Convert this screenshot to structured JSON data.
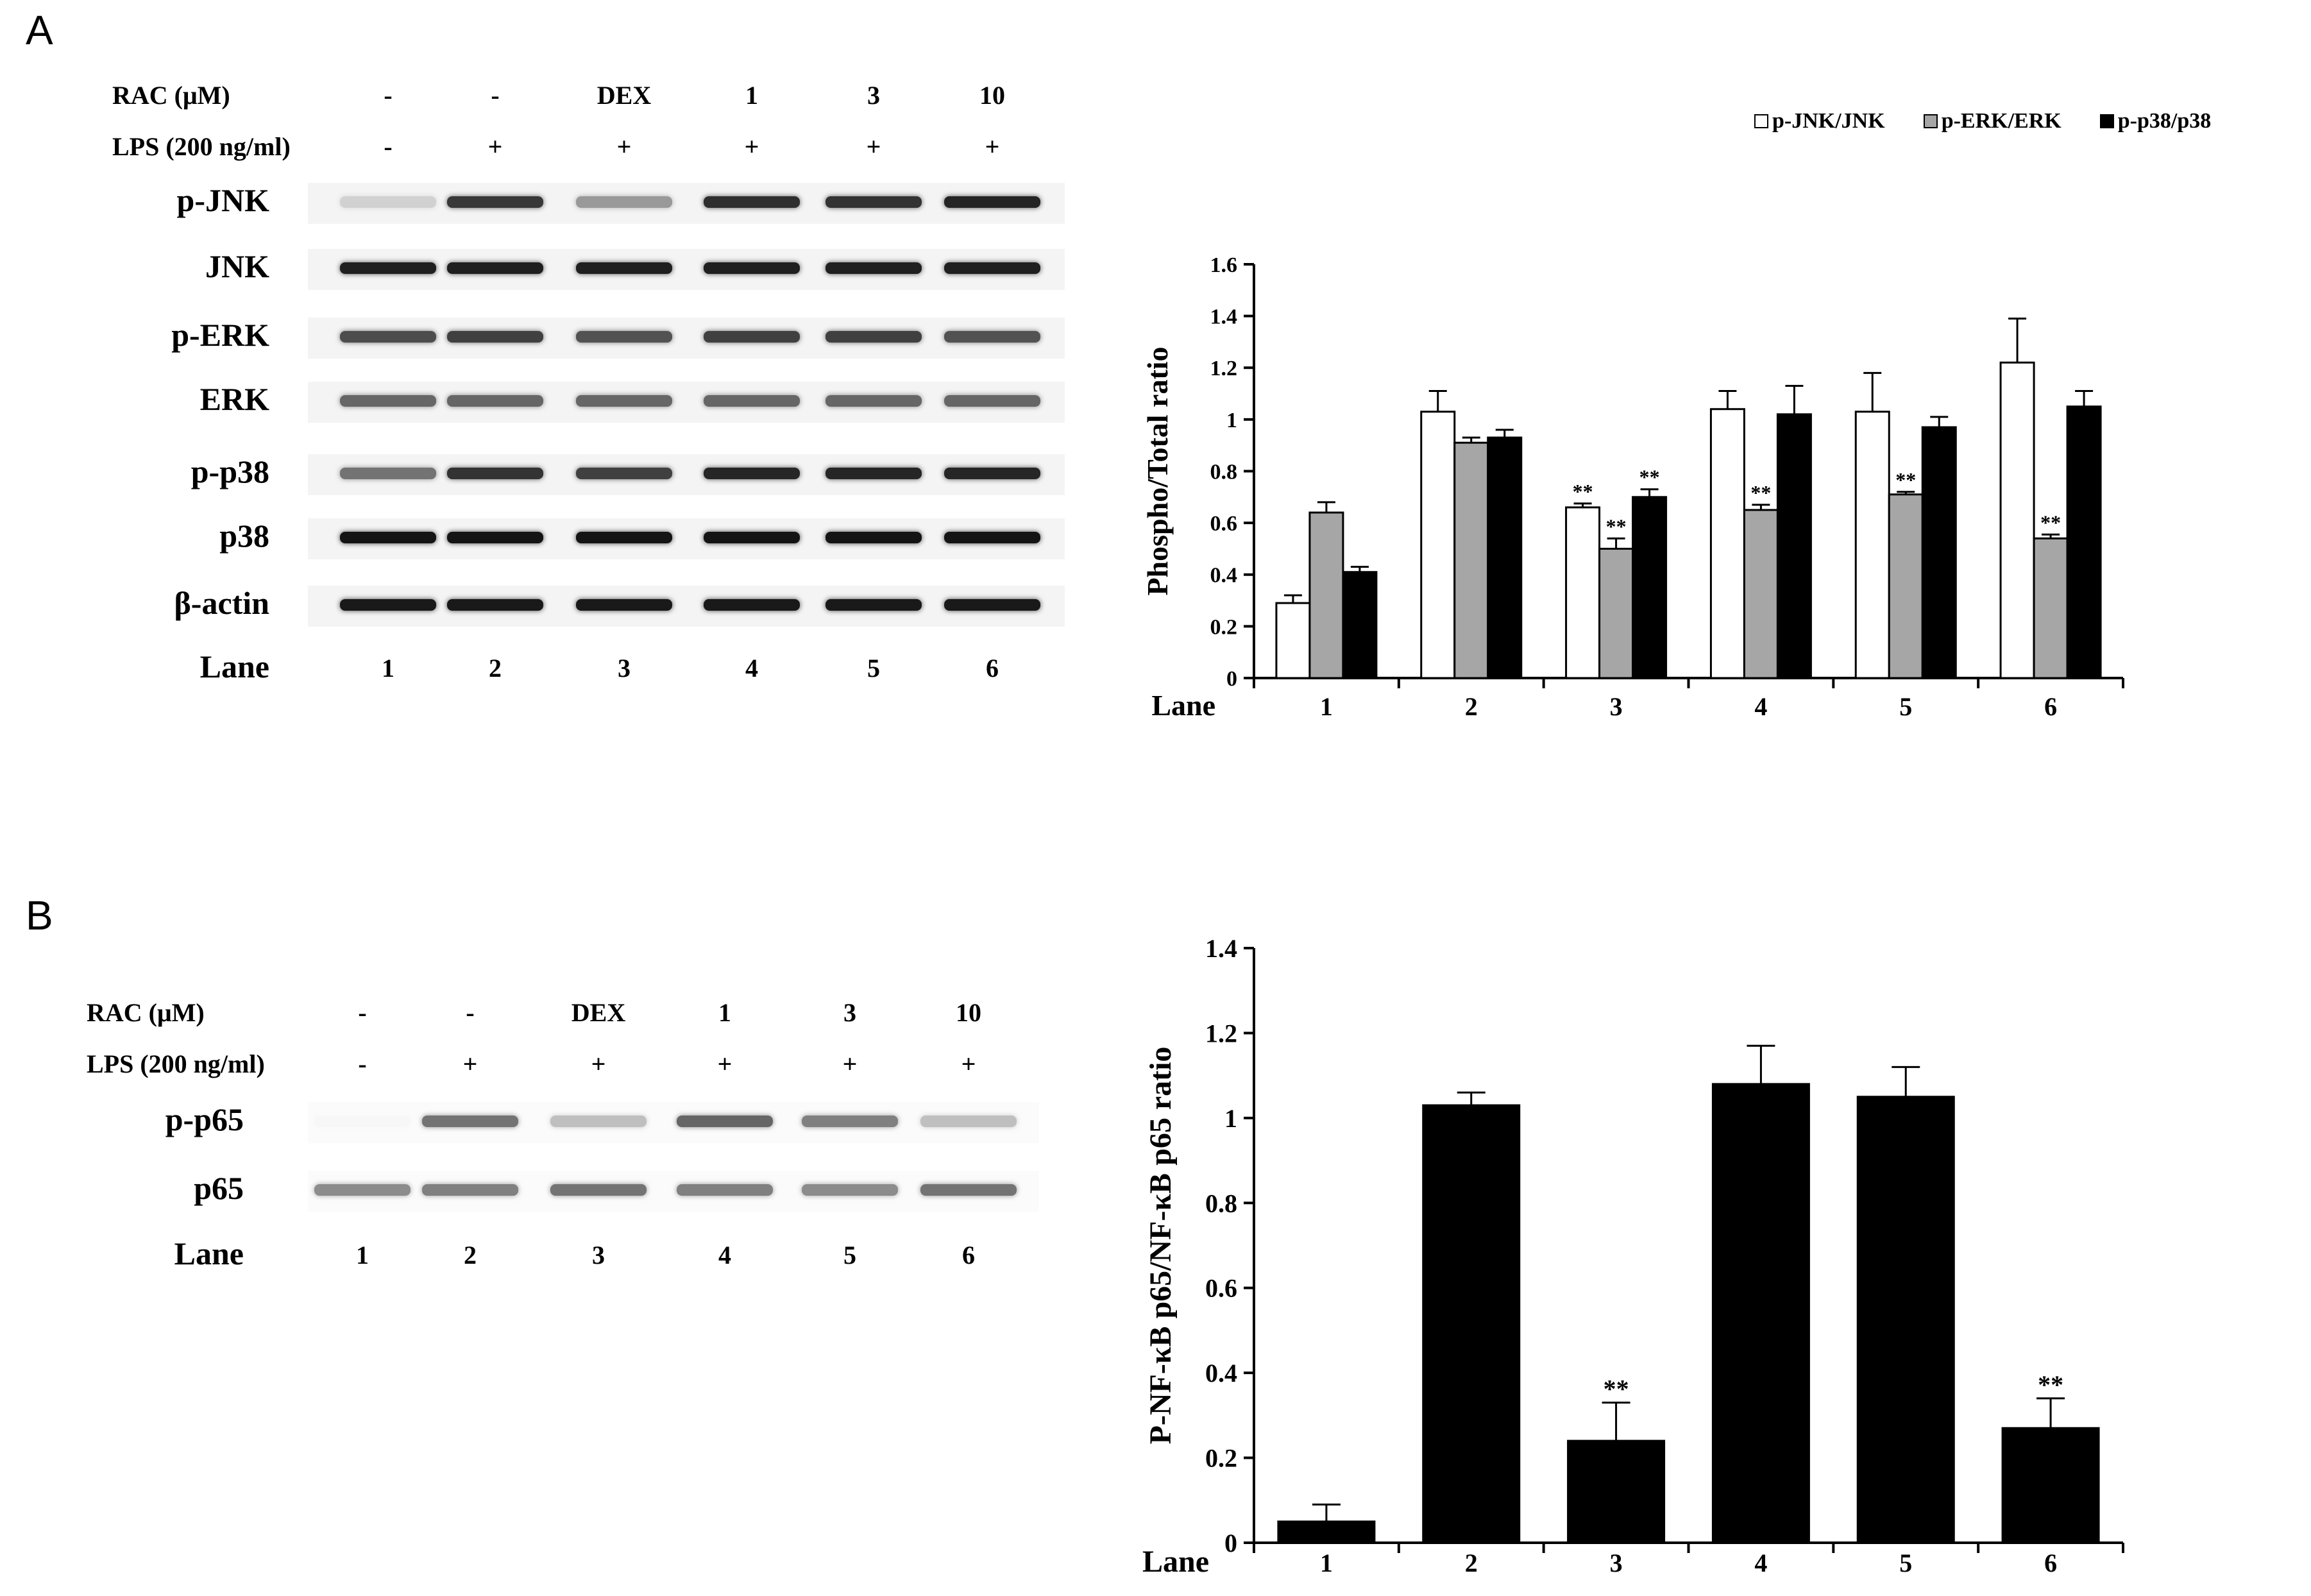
{
  "panel_a": {
    "letter": "A",
    "blot": {
      "conditions": [
        {
          "label": "RAC (μM)",
          "values": [
            "-",
            "-",
            "DEX",
            "1",
            "3",
            "10"
          ]
        },
        {
          "label": "LPS (200 ng/ml)",
          "values": [
            "-",
            "+",
            "+",
            "+",
            "+",
            "+"
          ]
        }
      ],
      "rows": [
        {
          "label": "p-JNK",
          "intensity": [
            0.18,
            0.78,
            0.4,
            0.82,
            0.8,
            0.86
          ]
        },
        {
          "label": "JNK",
          "intensity": [
            0.88,
            0.88,
            0.88,
            0.88,
            0.88,
            0.88
          ]
        },
        {
          "label": "p-ERK",
          "intensity": [
            0.7,
            0.75,
            0.68,
            0.75,
            0.75,
            0.68
          ]
        },
        {
          "label": "ERK",
          "intensity": [
            0.6,
            0.6,
            0.6,
            0.6,
            0.6,
            0.6
          ]
        },
        {
          "label": "p-p38",
          "intensity": [
            0.55,
            0.8,
            0.75,
            0.85,
            0.85,
            0.85
          ]
        },
        {
          "label": "p38",
          "intensity": [
            0.92,
            0.92,
            0.92,
            0.92,
            0.92,
            0.92
          ]
        },
        {
          "label": "β-actin",
          "intensity": [
            0.9,
            0.9,
            0.9,
            0.9,
            0.9,
            0.9
          ]
        }
      ],
      "lane_label": "Lane",
      "lanes": [
        "1",
        "2",
        "3",
        "4",
        "5",
        "6"
      ]
    }
  },
  "panel_b": {
    "letter": "B",
    "blot": {
      "conditions": [
        {
          "label": "RAC (μM)",
          "values": [
            "-",
            "-",
            "DEX",
            "1",
            "3",
            "10"
          ]
        },
        {
          "label": "LPS (200 ng/ml)",
          "values": [
            "-",
            "+",
            "+",
            "+",
            "+",
            "+"
          ]
        }
      ],
      "rows": [
        {
          "label": "p-p65",
          "intensity": [
            0.03,
            0.55,
            0.25,
            0.6,
            0.5,
            0.25
          ]
        },
        {
          "label": "p65",
          "intensity": [
            0.45,
            0.5,
            0.55,
            0.5,
            0.45,
            0.55
          ]
        }
      ],
      "lane_label": "Lane",
      "lanes": [
        "1",
        "2",
        "3",
        "4",
        "5",
        "6"
      ]
    }
  },
  "chart_data": [
    {
      "type": "bar",
      "title": "",
      "xlabel": "Lane",
      "ylabel": "Phospho/Total ratio",
      "categories": [
        "1",
        "2",
        "3",
        "4",
        "5",
        "6"
      ],
      "ylim": [
        0,
        1.6
      ],
      "yticks": [
        "0",
        "0.2",
        "0.4",
        "0.6",
        "0.8",
        "1",
        "1.2",
        "1.4",
        "1.6"
      ],
      "legend_position": "top",
      "series": [
        {
          "name": "p-JNK/JNK",
          "color": "#ffffff",
          "values": [
            0.29,
            1.03,
            0.66,
            1.04,
            1.03,
            1.22
          ],
          "errors": [
            0.03,
            0.08,
            0.015,
            0.07,
            0.15,
            0.17
          ],
          "significance": [
            "",
            "",
            "**",
            "",
            "",
            ""
          ]
        },
        {
          "name": "p-ERK/ERK",
          "color": "#a6a6a6",
          "values": [
            0.64,
            0.91,
            0.5,
            0.65,
            0.71,
            0.54
          ],
          "errors": [
            0.04,
            0.02,
            0.04,
            0.02,
            0.01,
            0.015
          ],
          "significance": [
            "",
            "",
            "**",
            "**",
            "**",
            "**"
          ]
        },
        {
          "name": "p-p38/p38",
          "color": "#000000",
          "values": [
            0.41,
            0.93,
            0.7,
            1.02,
            0.97,
            1.05
          ],
          "errors": [
            0.02,
            0.03,
            0.03,
            0.11,
            0.04,
            0.06
          ],
          "significance": [
            "",
            "",
            "**",
            "",
            "",
            ""
          ]
        }
      ]
    },
    {
      "type": "bar",
      "title": "",
      "xlabel": "Lane",
      "ylabel": "P-NF-κB p65/NF-κB p65 ratio",
      "categories": [
        "1",
        "2",
        "3",
        "4",
        "5",
        "6"
      ],
      "ylim": [
        0,
        1.4
      ],
      "yticks": [
        "0",
        "0.2",
        "0.4",
        "0.6",
        "0.8",
        "1",
        "1.2",
        "1.4"
      ],
      "series": [
        {
          "name": "",
          "color": "#000000",
          "values": [
            0.05,
            1.03,
            0.24,
            1.08,
            1.05,
            0.27
          ],
          "errors": [
            0.04,
            0.03,
            0.09,
            0.09,
            0.07,
            0.07
          ],
          "significance": [
            "",
            "",
            "**",
            "",
            "",
            "**"
          ]
        }
      ]
    }
  ]
}
